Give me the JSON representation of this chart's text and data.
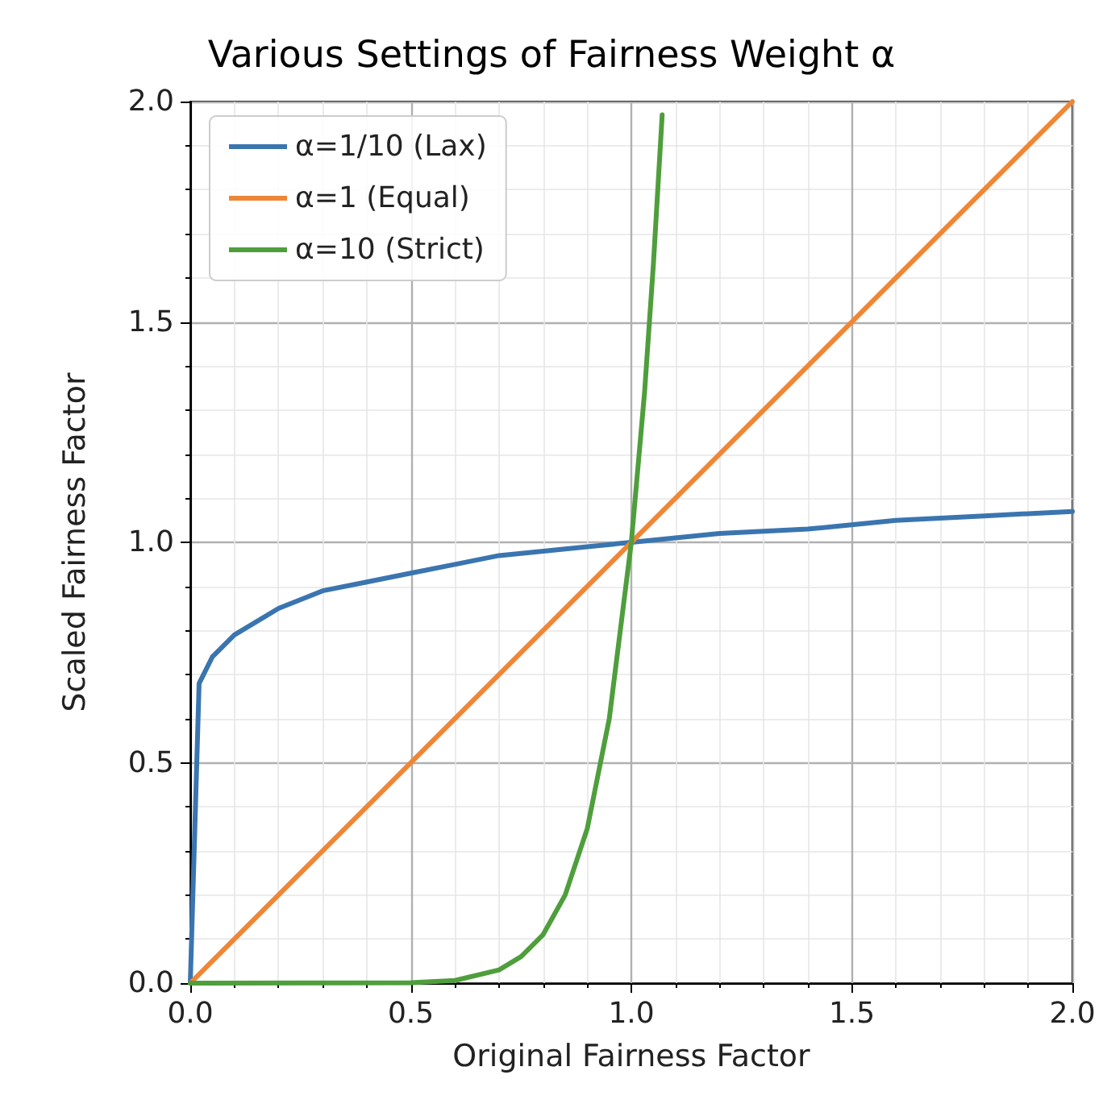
{
  "chart_data": {
    "type": "line",
    "title": "Various Settings of Fairness Weight α",
    "xlabel": "Original Fairness Factor",
    "ylabel": "Scaled Fairness Factor",
    "xlim": [
      0,
      2
    ],
    "ylim": [
      0,
      2
    ],
    "xticks": [
      {
        "value": 0,
        "label": "0.0"
      },
      {
        "value": 0.5,
        "label": "0.5"
      },
      {
        "value": 1,
        "label": "1.0"
      },
      {
        "value": 1.5,
        "label": "1.5"
      },
      {
        "value": 2,
        "label": "2.0"
      }
    ],
    "yticks": [
      {
        "value": 0,
        "label": "0.0"
      },
      {
        "value": 0.5,
        "label": "0.5"
      },
      {
        "value": 1,
        "label": "1.0"
      },
      {
        "value": 1.5,
        "label": "1.5"
      },
      {
        "value": 2,
        "label": "2.0"
      }
    ],
    "grid": true,
    "legend": "top left",
    "marker": "none",
    "line_style": "solid",
    "series": [
      {
        "name": "α=1/10 (Lax)",
        "color": "#3a75b0",
        "x": [
          0,
          0.02,
          0.05,
          0.1,
          0.2,
          0.3,
          0.4,
          0.5,
          0.6,
          0.7,
          0.8,
          0.9,
          1.0,
          1.2,
          1.4,
          1.6,
          1.8,
          2.0
        ],
        "values": [
          0,
          0.68,
          0.74,
          0.79,
          0.85,
          0.89,
          0.91,
          0.93,
          0.95,
          0.97,
          0.98,
          0.99,
          1.0,
          1.02,
          1.03,
          1.05,
          1.06,
          1.07
        ]
      },
      {
        "name": "α=1 (Equal)",
        "color": "#ef8636",
        "x": [
          0,
          2
        ],
        "values": [
          0,
          2
        ]
      },
      {
        "name": "α=10 (Strict)",
        "color": "#4f9e3c",
        "x": [
          0,
          0.5,
          0.6,
          0.7,
          0.75,
          0.8,
          0.85,
          0.9,
          0.95,
          1.0,
          1.03,
          1.05,
          1.07
        ],
        "values": [
          0,
          0.001,
          0.006,
          0.03,
          0.06,
          0.11,
          0.2,
          0.35,
          0.6,
          1.0,
          1.34,
          1.63,
          1.97
        ]
      }
    ]
  }
}
